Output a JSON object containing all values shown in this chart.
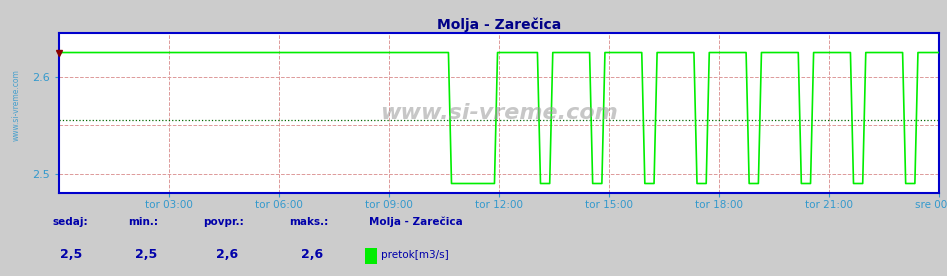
{
  "title": "Molja - Zarečica",
  "bg_color": "#cccccc",
  "plot_bg_color": "#ffffff",
  "line_color": "#00ee00",
  "axis_color": "#0000cc",
  "grid_color_v": "#dd9999",
  "grid_color_h": "#dd9999",
  "avg_line_color": "#006600",
  "title_color": "#000088",
  "tick_label_color": "#3399cc",
  "bottom_label_color": "#0000aa",
  "bottom_value_color": "#0000aa",
  "ymin": 2.48,
  "ymax": 2.645,
  "high_val": 2.625,
  "low_val": 2.49,
  "avg_value": 2.555,
  "sedaj": "2,5",
  "min_val": "2,5",
  "povpr": "2,6",
  "maks": "2,6",
  "station_name": "Molja - Zarečica",
  "legend_label": "pretok[m3/s]",
  "x_labels": [
    "tor 03:00",
    "tor 06:00",
    "tor 09:00",
    "tor 12:00",
    "tor 15:00",
    "tor 18:00",
    "tor 21:00",
    "sre 00:00"
  ],
  "num_points": 288,
  "watermark": "www.si-vreme.com"
}
